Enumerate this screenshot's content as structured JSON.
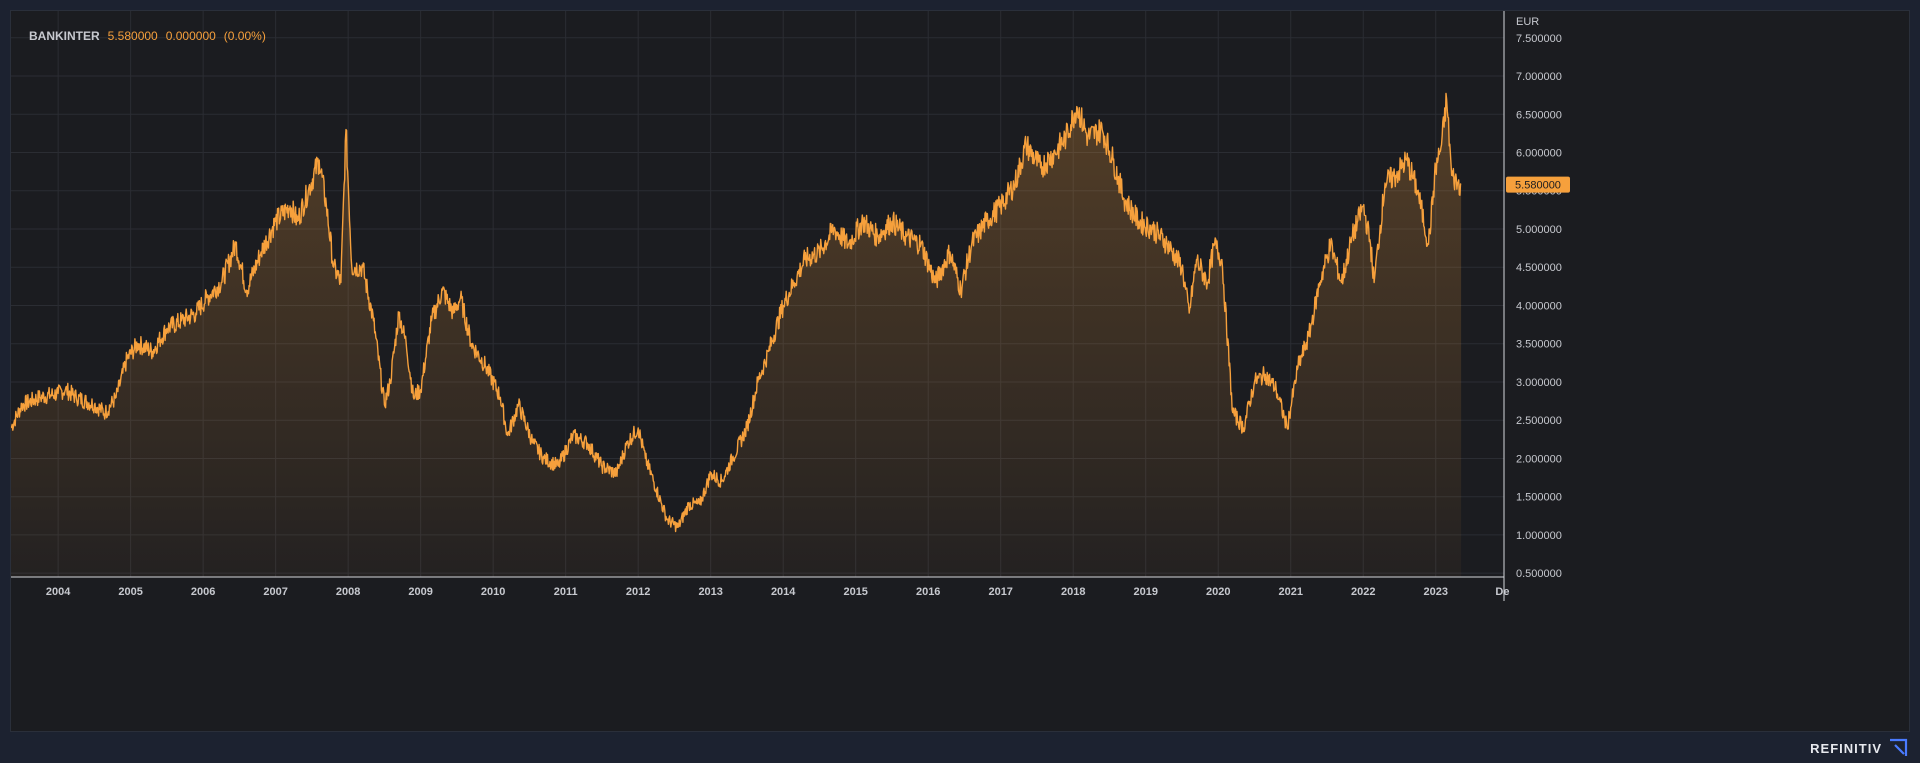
{
  "legend": {
    "symbol": "BANKINTER",
    "last": "5.580000",
    "change": "0.000000",
    "change_pct": "(0.00%)"
  },
  "brand": {
    "name": "REFINITIV"
  },
  "colors": {
    "line": "#f6a03c",
    "fill_top": "#f6a03c",
    "grid": "#2b2d33",
    "axis_text": "#c7c9cf",
    "badge_bg": "#f6a03c",
    "badge_text": "#1b1c20"
  },
  "chart_data": {
    "type": "area",
    "title": "",
    "ylabel": "EUR",
    "currency_label": "EUR",
    "last_value_badge": "5.580000",
    "x_range": [
      2003.35,
      2023.9
    ],
    "ylim": [
      0.45,
      7.85
    ],
    "yticks": [
      "0.500000",
      "1.000000",
      "1.500000",
      "2.000000",
      "2.500000",
      "3.000000",
      "3.500000",
      "4.000000",
      "4.500000",
      "5.000000",
      "5.500000",
      "6.000000",
      "6.500000",
      "7.000000",
      "7.500000"
    ],
    "xticks": [
      "2004",
      "2005",
      "2006",
      "2007",
      "2008",
      "2009",
      "2010",
      "2011",
      "2012",
      "2013",
      "2014",
      "2015",
      "2016",
      "2017",
      "2018",
      "2019",
      "2020",
      "2021",
      "2022",
      "2023",
      "De"
    ],
    "grid": true,
    "series": [
      {
        "name": "BANKINTER",
        "x": [
          2003.35,
          2003.5,
          2003.75,
          2004.0,
          2004.1,
          2004.25,
          2004.5,
          2004.65,
          2004.8,
          2004.95,
          2005.1,
          2005.3,
          2005.5,
          2005.7,
          2005.9,
          2006.05,
          2006.25,
          2006.45,
          2006.6,
          2006.8,
          2007.0,
          2007.2,
          2007.3,
          2007.45,
          2007.6,
          2007.7,
          2007.8,
          2007.9,
          2007.97,
          2008.05,
          2008.2,
          2008.35,
          2008.5,
          2008.58,
          2008.7,
          2008.8,
          2008.9,
          2009.0,
          2009.15,
          2009.3,
          2009.45,
          2009.55,
          2009.7,
          2009.9,
          2010.1,
          2010.2,
          2010.35,
          2010.55,
          2010.7,
          2010.9,
          2011.1,
          2011.3,
          2011.5,
          2011.7,
          2011.85,
          2012.0,
          2012.1,
          2012.25,
          2012.4,
          2012.55,
          2012.7,
          2012.85,
          2013.0,
          2013.15,
          2013.3,
          2013.5,
          2013.65,
          2013.8,
          2014.0,
          2014.15,
          2014.3,
          2014.5,
          2014.7,
          2014.9,
          2015.1,
          2015.3,
          2015.5,
          2015.7,
          2015.9,
          2016.1,
          2016.3,
          2016.45,
          2016.6,
          2016.8,
          2017.0,
          2017.2,
          2017.35,
          2017.55,
          2017.75,
          2017.9,
          2018.05,
          2018.2,
          2018.4,
          2018.55,
          2018.7,
          2018.9,
          2019.1,
          2019.3,
          2019.5,
          2019.6,
          2019.7,
          2019.85,
          2019.95,
          2020.05,
          2020.2,
          2020.35,
          2020.5,
          2020.65,
          2020.8,
          2020.95,
          2021.1,
          2021.25,
          2021.4,
          2021.55,
          2021.7,
          2021.85,
          2022.0,
          2022.1,
          2022.15,
          2022.3,
          2022.45,
          2022.6,
          2022.75,
          2022.9,
          2023.0,
          2023.08,
          2023.15,
          2023.22,
          2023.3,
          2023.35
        ],
        "values": [
          2.4,
          2.7,
          2.8,
          2.85,
          2.9,
          2.8,
          2.7,
          2.6,
          2.8,
          3.3,
          3.5,
          3.4,
          3.7,
          3.8,
          3.9,
          4.1,
          4.3,
          4.8,
          4.2,
          4.7,
          5.1,
          5.3,
          5.1,
          5.5,
          5.9,
          5.3,
          4.5,
          4.3,
          6.3,
          4.5,
          4.5,
          3.8,
          2.7,
          3.0,
          3.9,
          3.5,
          2.8,
          2.9,
          3.8,
          4.2,
          3.9,
          4.1,
          3.5,
          3.2,
          2.8,
          2.3,
          2.7,
          2.2,
          2.0,
          1.9,
          2.3,
          2.2,
          1.9,
          1.8,
          2.2,
          2.4,
          2.0,
          1.6,
          1.2,
          1.1,
          1.4,
          1.4,
          1.8,
          1.7,
          2.0,
          2.4,
          3.0,
          3.4,
          4.0,
          4.3,
          4.6,
          4.7,
          5.0,
          4.8,
          5.1,
          4.9,
          5.1,
          4.9,
          4.8,
          4.3,
          4.7,
          4.2,
          4.8,
          5.1,
          5.3,
          5.6,
          6.1,
          5.8,
          6.0,
          6.2,
          6.6,
          6.2,
          6.3,
          5.9,
          5.4,
          5.1,
          5.0,
          4.8,
          4.5,
          3.9,
          4.6,
          4.3,
          4.8,
          4.6,
          2.6,
          2.4,
          3.0,
          3.1,
          2.9,
          2.4,
          3.2,
          3.6,
          4.3,
          4.8,
          4.3,
          4.9,
          5.3,
          4.8,
          4.3,
          5.6,
          5.7,
          5.9,
          5.5,
          4.8,
          5.8,
          6.1,
          6.7,
          5.7,
          5.6,
          5.58
        ]
      }
    ]
  }
}
